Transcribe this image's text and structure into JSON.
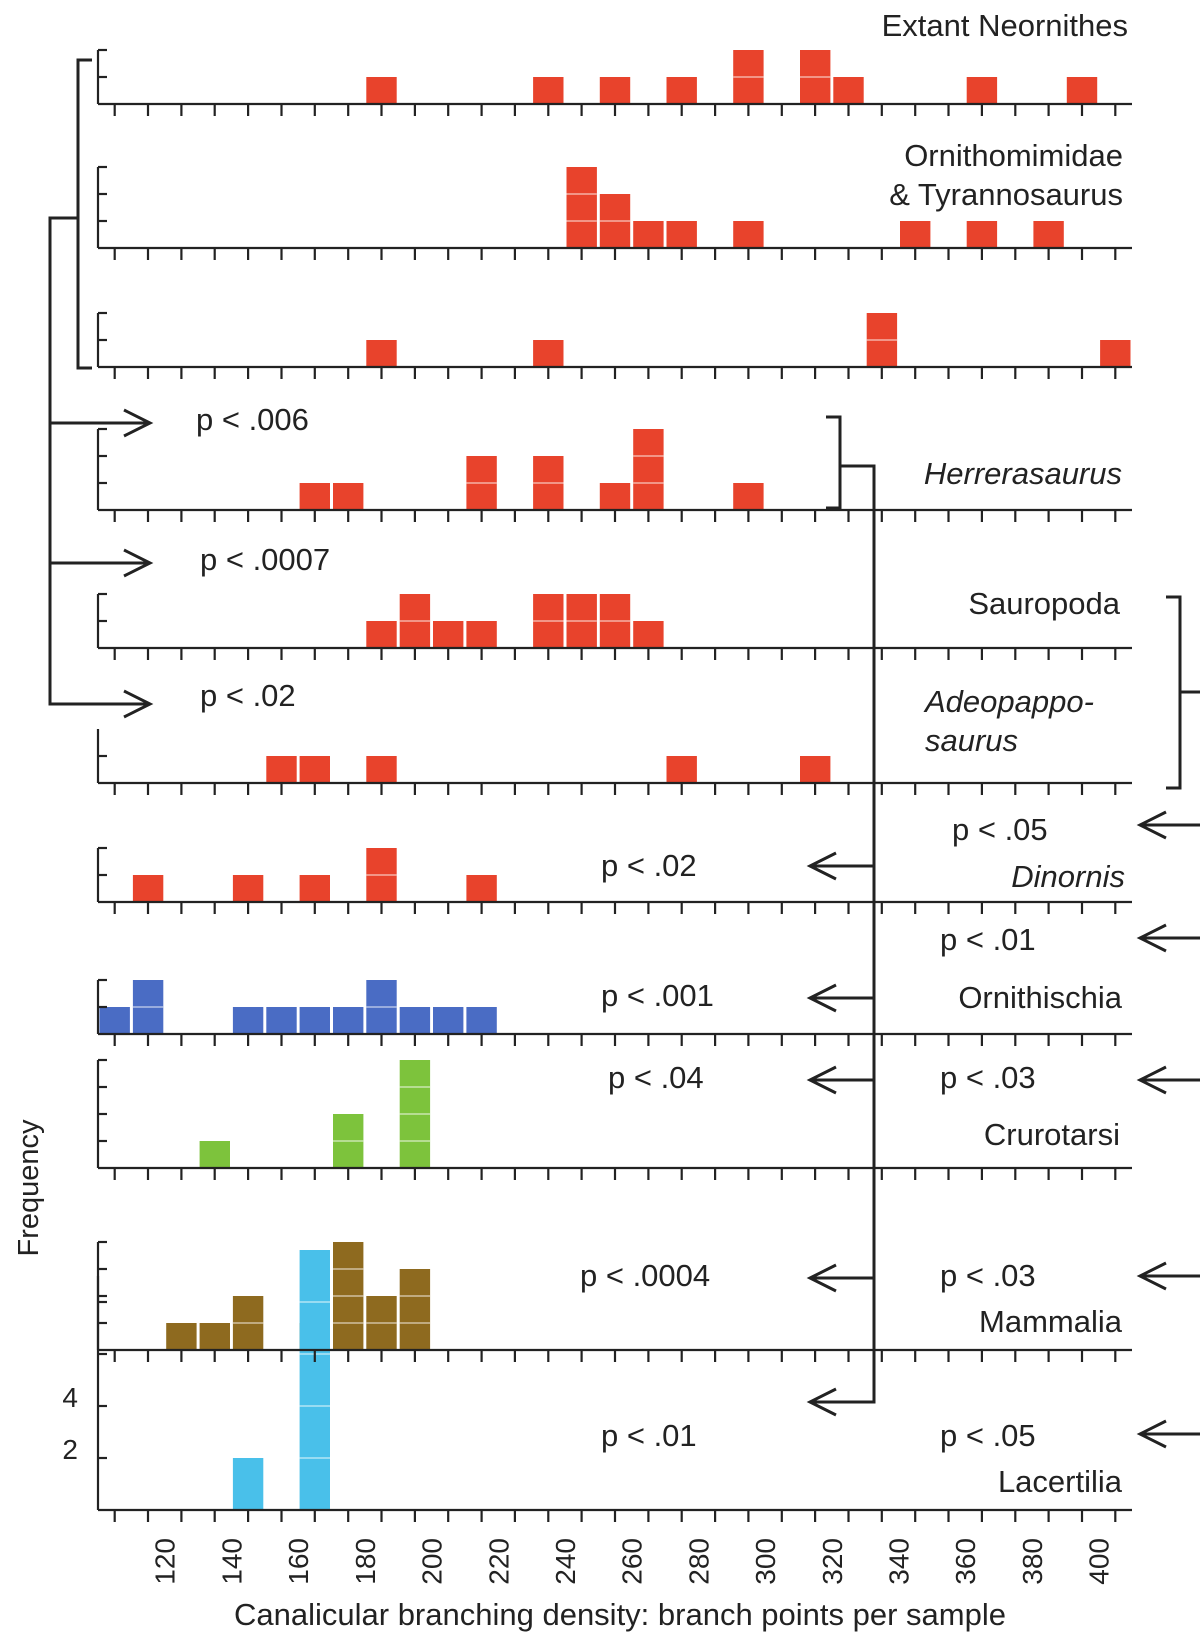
{
  "chart_data": {
    "type": "bar",
    "xlabel": "Canalicular branching density: branch points per sample",
    "ylabel": "Frequency",
    "x_tick_labels": [
      "120",
      "140",
      "160",
      "180",
      "200",
      "220",
      "240",
      "260",
      "280",
      "300",
      "320",
      "340",
      "360",
      "380",
      "400"
    ],
    "xlim": [
      105,
      415
    ],
    "bin_width": 10,
    "y_tick_labels": [
      "4",
      "2"
    ],
    "panels": [
      {
        "id": "neornithes",
        "label": "Extant Neornithes",
        "label_italic": false,
        "color": "#e8432c",
        "bars": [
          [
            190,
            1
          ],
          [
            240,
            1
          ],
          [
            260,
            1
          ],
          [
            280,
            1
          ],
          [
            300,
            2
          ],
          [
            320,
            2
          ],
          [
            330,
            1
          ],
          [
            370,
            1
          ],
          [
            400,
            1
          ]
        ]
      },
      {
        "id": "ornithomimidae",
        "label_lines": [
          "Ornithomimidae",
          "& Tyrannosaurus"
        ],
        "color": "#e8432c",
        "bars": [
          [
            250,
            3
          ],
          [
            260,
            2
          ],
          [
            270,
            1
          ],
          [
            280,
            1
          ],
          [
            300,
            1
          ],
          [
            350,
            1
          ],
          [
            370,
            1
          ],
          [
            390,
            1
          ]
        ]
      },
      {
        "id": "panel3",
        "label": "",
        "color": "#e8432c",
        "bars": [
          [
            190,
            1
          ],
          [
            240,
            1
          ],
          [
            340,
            2
          ],
          [
            410,
            1
          ]
        ]
      },
      {
        "id": "herrerasaurus",
        "label": "Herrerasaurus",
        "label_italic": true,
        "color": "#e8432c",
        "bars": [
          [
            170,
            1
          ],
          [
            180,
            1
          ],
          [
            220,
            2
          ],
          [
            240,
            2
          ],
          [
            260,
            1
          ],
          [
            270,
            3
          ],
          [
            300,
            1
          ]
        ]
      },
      {
        "id": "sauropoda",
        "label": "Sauropoda",
        "label_italic": false,
        "color": "#e8432c",
        "bars": [
          [
            190,
            1
          ],
          [
            200,
            2
          ],
          [
            210,
            1
          ],
          [
            220,
            1
          ],
          [
            240,
            2
          ],
          [
            250,
            2
          ],
          [
            260,
            2
          ],
          [
            270,
            1
          ]
        ]
      },
      {
        "id": "adeopapposaurus",
        "label_lines": [
          "Adeopappo-",
          "saurus"
        ],
        "label_italic": true,
        "color": "#e8432c",
        "bars": [
          [
            160,
            1
          ],
          [
            170,
            1
          ],
          [
            190,
            1
          ],
          [
            280,
            1
          ],
          [
            320,
            1
          ]
        ]
      },
      {
        "id": "dinornis",
        "label": "Dinornis",
        "label_italic": true,
        "color": "#e8432c",
        "bars": [
          [
            120,
            1
          ],
          [
            150,
            1
          ],
          [
            170,
            1
          ],
          [
            190,
            2
          ],
          [
            220,
            1
          ]
        ]
      },
      {
        "id": "ornithischia",
        "label": "Ornithischia",
        "label_italic": false,
        "color": "#4a6cc4",
        "bars": [
          [
            110,
            1
          ],
          [
            120,
            2
          ],
          [
            150,
            1
          ],
          [
            160,
            1
          ],
          [
            170,
            1
          ],
          [
            180,
            1
          ],
          [
            190,
            2
          ],
          [
            200,
            1
          ],
          [
            210,
            1
          ],
          [
            220,
            1
          ]
        ]
      },
      {
        "id": "crurotarsi",
        "label": "Crurotarsi",
        "label_italic": false,
        "color": "#7dc33c",
        "bars": [
          [
            140,
            1
          ],
          [
            180,
            2
          ],
          [
            200,
            4
          ]
        ]
      },
      {
        "id": "mammalia",
        "label": "Mammalia",
        "label_italic": false,
        "color": "#8e6a1f",
        "bars": [
          [
            130,
            1
          ],
          [
            140,
            1
          ],
          [
            150,
            2
          ],
          [
            170,
            1
          ],
          [
            180,
            4
          ],
          [
            190,
            2
          ],
          [
            200,
            3
          ]
        ]
      },
      {
        "id": "lacertilia",
        "label": "Lacertilia",
        "label_italic": false,
        "color": "#49c0ea",
        "bars": [
          [
            150,
            1
          ],
          [
            170,
            5
          ]
        ]
      }
    ],
    "annotations": {
      "left_p": [
        "p < .006",
        "p < .0007",
        "p < .02"
      ],
      "middle_p": [
        "p < .02",
        "p < .001",
        "p < .04",
        "p < .0004",
        "p < .01"
      ],
      "right_p": [
        "p < .05",
        "p < .01",
        "p < .03",
        "p < .03",
        "p < .05"
      ]
    }
  }
}
